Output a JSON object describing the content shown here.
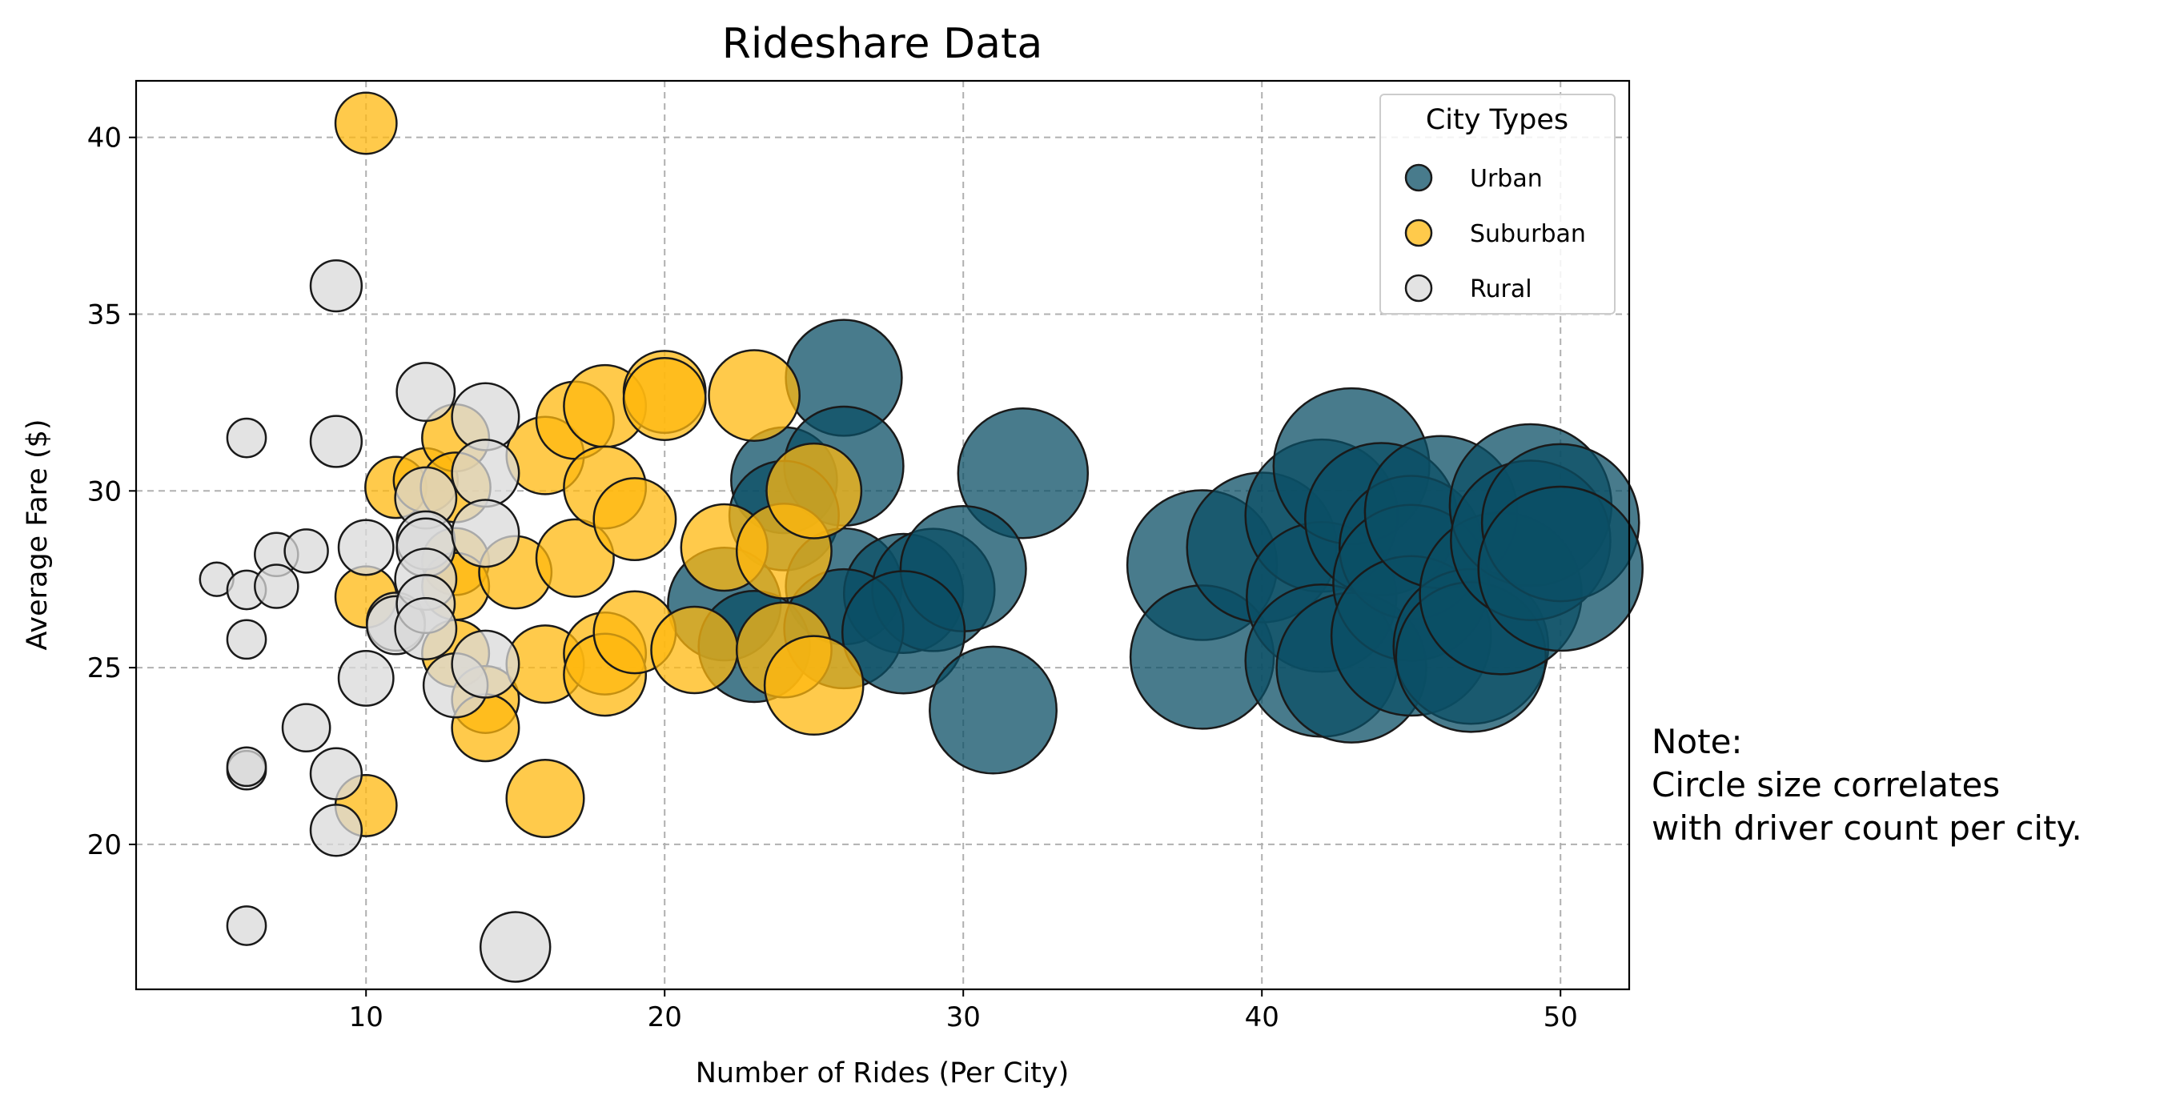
{
  "chart_data": {
    "type": "scatter",
    "title": "Rideshare Data",
    "xlabel": "Number of Rides (Per City)",
    "ylabel": "Average Fare ($)",
    "xlim": [
      2.3,
      52.3
    ],
    "ylim": [
      15.9,
      41.6
    ],
    "xticks": [
      10,
      20,
      30,
      40,
      50
    ],
    "yticks": [
      20,
      25,
      30,
      35,
      40
    ],
    "grid": true,
    "legend": {
      "title": "City Types",
      "placement": "top-right"
    },
    "note": [
      "Note:",
      "Circle size correlates",
      "with driver count per city."
    ],
    "series": [
      {
        "name": "Urban",
        "color": "#0b4f66",
        "points": [
          {
            "x": 26,
            "y": 33.2,
            "drivers": 36
          },
          {
            "x": 24,
            "y": 30.3,
            "drivers": 30
          },
          {
            "x": 26,
            "y": 30.7,
            "drivers": 38
          },
          {
            "x": 24,
            "y": 29.3,
            "drivers": 32
          },
          {
            "x": 32,
            "y": 30.5,
            "drivers": 45
          },
          {
            "x": 22,
            "y": 26.8,
            "drivers": 34
          },
          {
            "x": 26,
            "y": 27.3,
            "drivers": 36
          },
          {
            "x": 28,
            "y": 27.1,
            "drivers": 38
          },
          {
            "x": 29,
            "y": 27.2,
            "drivers": 40
          },
          {
            "x": 30,
            "y": 27.8,
            "drivers": 42
          },
          {
            "x": 23,
            "y": 25.6,
            "drivers": 33
          },
          {
            "x": 26,
            "y": 26.1,
            "drivers": 38
          },
          {
            "x": 28,
            "y": 26.0,
            "drivers": 40
          },
          {
            "x": 31,
            "y": 23.8,
            "drivers": 43
          },
          {
            "x": 38,
            "y": 27.9,
            "drivers": 60
          },
          {
            "x": 38,
            "y": 25.3,
            "drivers": 55
          },
          {
            "x": 40,
            "y": 28.4,
            "drivers": 60
          },
          {
            "x": 42,
            "y": 29.3,
            "drivers": 62
          },
          {
            "x": 42,
            "y": 27.0,
            "drivers": 60
          },
          {
            "x": 42,
            "y": 25.2,
            "drivers": 62
          },
          {
            "x": 43,
            "y": 30.7,
            "drivers": 65
          },
          {
            "x": 43,
            "y": 25.0,
            "drivers": 60
          },
          {
            "x": 44,
            "y": 29.2,
            "drivers": 62
          },
          {
            "x": 45,
            "y": 28.4,
            "drivers": 55
          },
          {
            "x": 45,
            "y": 27.4,
            "drivers": 65
          },
          {
            "x": 45,
            "y": 25.9,
            "drivers": 68
          },
          {
            "x": 46,
            "y": 29.4,
            "drivers": 62
          },
          {
            "x": 47,
            "y": 25.6,
            "drivers": 64
          },
          {
            "x": 47,
            "y": 25.3,
            "drivers": 60
          },
          {
            "x": 48,
            "y": 27.1,
            "drivers": 70
          },
          {
            "x": 49,
            "y": 29.6,
            "drivers": 70
          },
          {
            "x": 49,
            "y": 28.6,
            "drivers": 68
          },
          {
            "x": 50,
            "y": 29.1,
            "drivers": 66
          },
          {
            "x": 50,
            "y": 27.8,
            "drivers": 72
          }
        ]
      },
      {
        "name": "Suburban",
        "color": "#ffb80f",
        "points": [
          {
            "x": 10,
            "y": 40.4,
            "drivers": 10
          },
          {
            "x": 10,
            "y": 27.0,
            "drivers": 10
          },
          {
            "x": 10,
            "y": 21.1,
            "drivers": 10
          },
          {
            "x": 11,
            "y": 30.1,
            "drivers": 10
          },
          {
            "x": 12,
            "y": 30.3,
            "drivers": 11
          },
          {
            "x": 13,
            "y": 31.5,
            "drivers": 12
          },
          {
            "x": 13,
            "y": 30.1,
            "drivers": 13
          },
          {
            "x": 13,
            "y": 28.0,
            "drivers": 12
          },
          {
            "x": 13,
            "y": 27.3,
            "drivers": 12
          },
          {
            "x": 13,
            "y": 25.4,
            "drivers": 12
          },
          {
            "x": 14,
            "y": 24.1,
            "drivers": 12
          },
          {
            "x": 14,
            "y": 23.3,
            "drivers": 12
          },
          {
            "x": 15,
            "y": 27.7,
            "drivers": 14
          },
          {
            "x": 16,
            "y": 31.0,
            "drivers": 16
          },
          {
            "x": 16,
            "y": 25.1,
            "drivers": 16
          },
          {
            "x": 16,
            "y": 21.3,
            "drivers": 16
          },
          {
            "x": 17,
            "y": 32.0,
            "drivers": 16
          },
          {
            "x": 17,
            "y": 28.1,
            "drivers": 16
          },
          {
            "x": 18,
            "y": 32.4,
            "drivers": 18
          },
          {
            "x": 18,
            "y": 30.1,
            "drivers": 18
          },
          {
            "x": 18,
            "y": 25.4,
            "drivers": 18
          },
          {
            "x": 18,
            "y": 24.8,
            "drivers": 18
          },
          {
            "x": 19,
            "y": 29.2,
            "drivers": 18
          },
          {
            "x": 19,
            "y": 26.0,
            "drivers": 18
          },
          {
            "x": 20,
            "y": 32.8,
            "drivers": 18
          },
          {
            "x": 20,
            "y": 32.6,
            "drivers": 18
          },
          {
            "x": 21,
            "y": 25.5,
            "drivers": 20
          },
          {
            "x": 22,
            "y": 28.4,
            "drivers": 20
          },
          {
            "x": 23,
            "y": 32.7,
            "drivers": 22
          },
          {
            "x": 24,
            "y": 28.3,
            "drivers": 24
          },
          {
            "x": 24,
            "y": 25.5,
            "drivers": 24
          },
          {
            "x": 25,
            "y": 30.0,
            "drivers": 24
          },
          {
            "x": 25,
            "y": 24.5,
            "drivers": 26
          }
        ]
      },
      {
        "name": "Rural",
        "color": "#d9d9d9",
        "points": [
          {
            "x": 5,
            "y": 27.5,
            "drivers": 3
          },
          {
            "x": 6,
            "y": 31.5,
            "drivers": 4
          },
          {
            "x": 6,
            "y": 27.2,
            "drivers": 4
          },
          {
            "x": 6,
            "y": 25.8,
            "drivers": 4
          },
          {
            "x": 6,
            "y": 22.1,
            "drivers": 4
          },
          {
            "x": 6,
            "y": 22.2,
            "drivers": 4
          },
          {
            "x": 6,
            "y": 17.7,
            "drivers": 4
          },
          {
            "x": 7,
            "y": 28.2,
            "drivers": 5
          },
          {
            "x": 7,
            "y": 27.3,
            "drivers": 5
          },
          {
            "x": 8,
            "y": 28.3,
            "drivers": 5
          },
          {
            "x": 8,
            "y": 23.3,
            "drivers": 6
          },
          {
            "x": 9,
            "y": 35.8,
            "drivers": 7
          },
          {
            "x": 9,
            "y": 31.4,
            "drivers": 7
          },
          {
            "x": 9,
            "y": 22.0,
            "drivers": 7
          },
          {
            "x": 9,
            "y": 20.4,
            "drivers": 7
          },
          {
            "x": 10,
            "y": 28.4,
            "drivers": 8
          },
          {
            "x": 10,
            "y": 24.7,
            "drivers": 8
          },
          {
            "x": 11,
            "y": 26.3,
            "drivers": 9
          },
          {
            "x": 11,
            "y": 26.2,
            "drivers": 9
          },
          {
            "x": 12,
            "y": 32.8,
            "drivers": 9
          },
          {
            "x": 12,
            "y": 29.8,
            "drivers": 10
          },
          {
            "x": 12,
            "y": 28.6,
            "drivers": 9
          },
          {
            "x": 12,
            "y": 28.4,
            "drivers": 9
          },
          {
            "x": 12,
            "y": 27.5,
            "drivers": 10
          },
          {
            "x": 12,
            "y": 26.8,
            "drivers": 9
          },
          {
            "x": 12,
            "y": 26.1,
            "drivers": 10
          },
          {
            "x": 13,
            "y": 24.5,
            "drivers": 11
          },
          {
            "x": 14,
            "y": 32.1,
            "drivers": 12
          },
          {
            "x": 14,
            "y": 30.5,
            "drivers": 12
          },
          {
            "x": 14,
            "y": 28.8,
            "drivers": 12
          },
          {
            "x": 14,
            "y": 25.1,
            "drivers": 12
          },
          {
            "x": 15,
            "y": 17.1,
            "drivers": 13
          }
        ]
      }
    ]
  }
}
